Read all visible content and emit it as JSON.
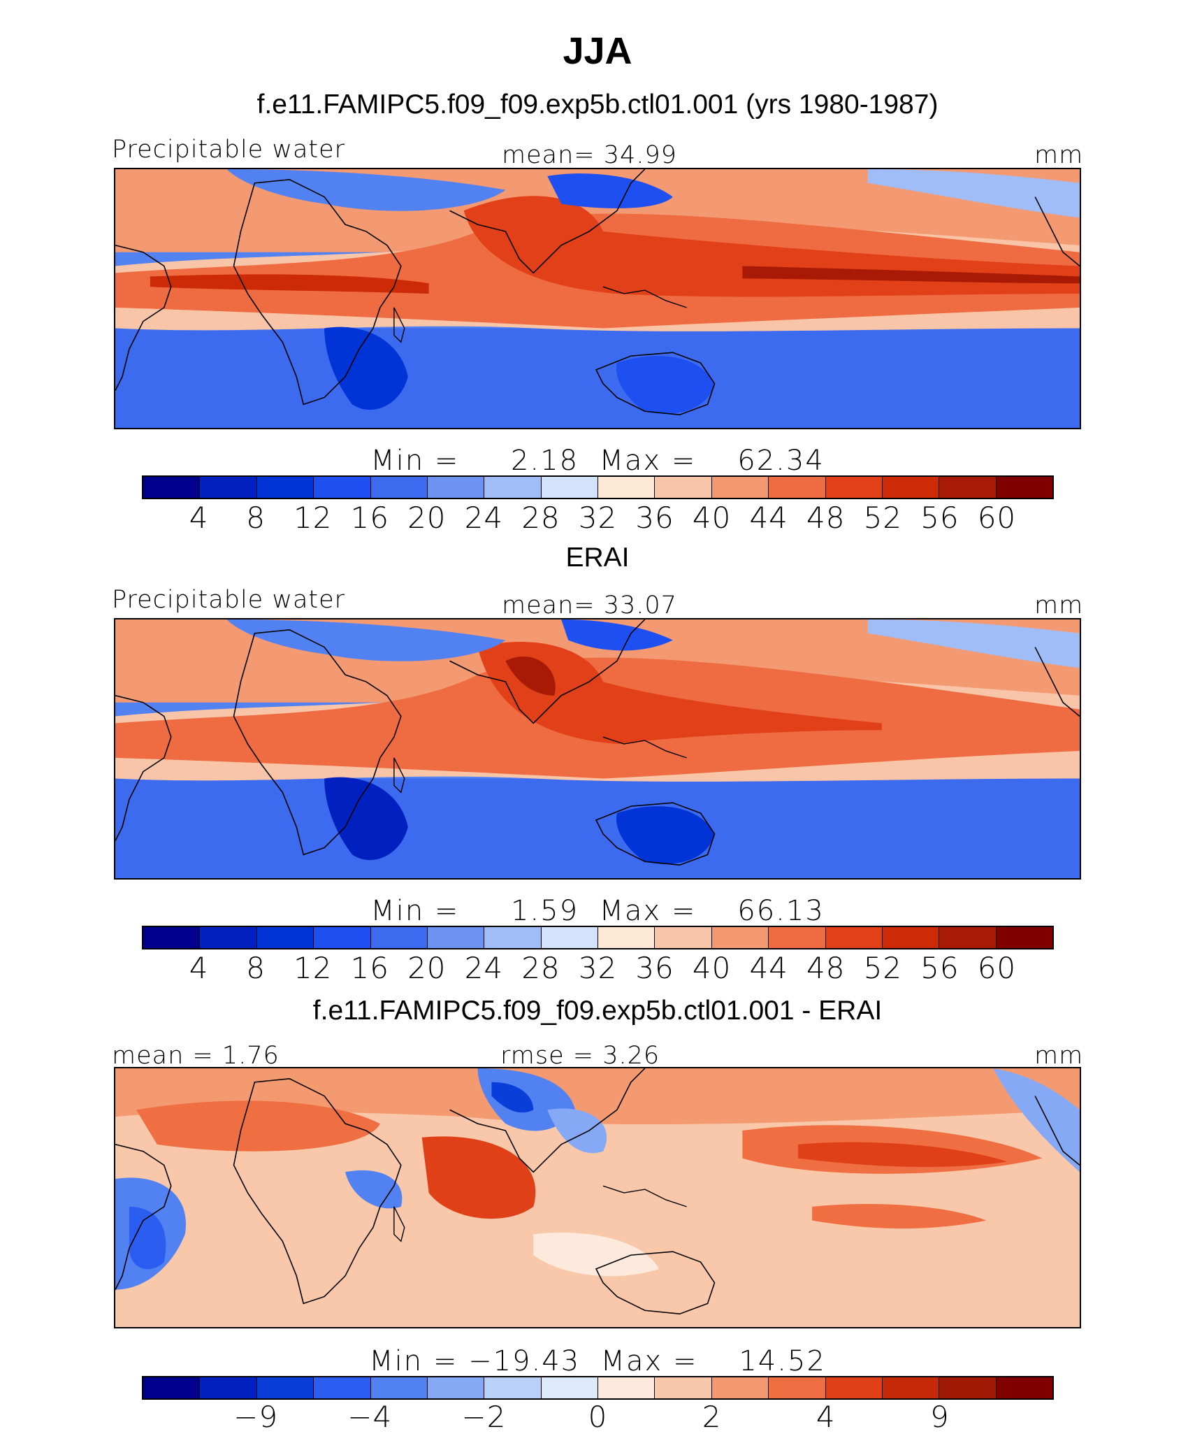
{
  "title": "JJA",
  "colors": {
    "abs_scale": [
      "#00008f",
      "#0021c0",
      "#0034d6",
      "#1e4ff0",
      "#3c6bf0",
      "#6c93f2",
      "#a0bdf7",
      "#d3e3fb",
      "#fde8d6",
      "#f9c5a8",
      "#f49a73",
      "#ef6b42",
      "#e24019",
      "#cd2b08",
      "#a81a05",
      "#800000"
    ],
    "diff_scale": [
      "#00008f",
      "#0021c0",
      "#0a3ed8",
      "#2b5ef0",
      "#5281f2",
      "#86a9f5",
      "#b9d0f9",
      "#deeafc",
      "#fdeadc",
      "#f9c8aa",
      "#f49a70",
      "#ef6e42",
      "#e04018",
      "#c42a08",
      "#a01a05",
      "#800000"
    ]
  },
  "panels": [
    {
      "heading": "f.e11.FAMIPC5.f09_f09.exp5b.ctl01.001 (yrs 1980-1987)",
      "left_label": "Precipitable water",
      "center_label": "mean=   34.99",
      "units": "mm",
      "minmax": "Min =     2.18  Max =    62.34",
      "ticks": [
        "4",
        "8",
        "12",
        "16",
        "20",
        "24",
        "28",
        "32",
        "36",
        "40",
        "44",
        "48",
        "52",
        "56",
        "60"
      ],
      "scale": "abs_scale"
    },
    {
      "heading": "ERAI",
      "left_label": "Precipitable water",
      "center_label": "mean=   33.07",
      "units": "mm",
      "minmax": "Min =     1.59  Max =    66.13",
      "ticks": [
        "4",
        "8",
        "12",
        "16",
        "20",
        "24",
        "28",
        "32",
        "36",
        "40",
        "44",
        "48",
        "52",
        "56",
        "60"
      ],
      "scale": "abs_scale"
    },
    {
      "heading": "f.e11.FAMIPC5.f09_f09.exp5b.ctl01.001 - ERAI",
      "left_label": "mean =    1.76",
      "center_label": "rmse =    3.26",
      "units": "mm",
      "minmax": "Min = −19.43  Max =    14.52",
      "ticks": [
        "−9",
        "−4",
        "−2",
        "0",
        "2",
        "4",
        "9"
      ],
      "scale": "diff_scale"
    }
  ]
}
